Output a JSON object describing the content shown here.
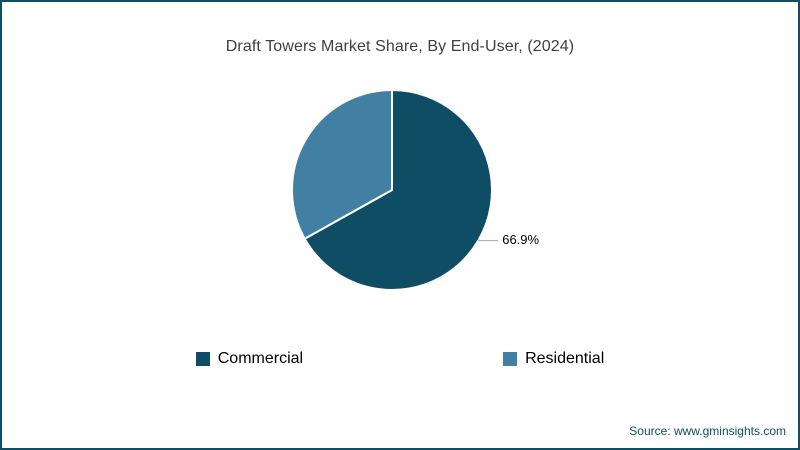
{
  "frame_color": "#0e4d64",
  "source": "Source: www.gminsights.com",
  "source_color": "#0e4d64",
  "chart_data": {
    "type": "pie",
    "title": "Draft Towers Market Share, By End-User, (2024)",
    "legend_position": "bottom",
    "start_angle_deg": 0,
    "direction": "clockwise",
    "series": [
      {
        "name": "Commercial",
        "value": 66.9,
        "label": "66.9%",
        "color": "#0e4d64"
      },
      {
        "name": "Residential",
        "value": 33.1,
        "label": "",
        "color": "#4180a3"
      }
    ],
    "slice_border_color": "#ffffff",
    "label_color": "#000000",
    "leader_line_color": "#a6a6a6"
  }
}
